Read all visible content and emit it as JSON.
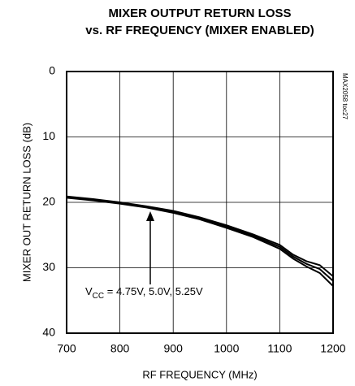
{
  "chart_data": {
    "type": "line",
    "title": [
      "MIXER OUTPUT RETURN LOSS",
      "vs. RF  FREQUENCY (MIXER ENABLED)"
    ],
    "x_label": "RF FREQUENCY (MHz)",
    "y_label": "MIXER OUT RETURN LOSS (dB)",
    "side_label": "MAX2058 toc27",
    "annotation": {
      "base": "V",
      "subscript": "CC",
      "rest": " = 4.75V, 5.0V, 5.25V"
    },
    "x": [
      700,
      750,
      800,
      850,
      900,
      950,
      1000,
      1050,
      1100,
      1125,
      1150,
      1175,
      1200
    ],
    "series": [
      {
        "color": "#000000",
        "values": [
          19.1,
          19.5,
          20.0,
          20.6,
          21.3,
          22.3,
          23.5,
          24.9,
          26.5,
          28.0,
          29.0,
          29.6,
          31.3
        ]
      },
      {
        "color": "#000000",
        "values": [
          19.2,
          19.6,
          20.1,
          20.7,
          21.5,
          22.5,
          23.7,
          25.1,
          26.8,
          28.3,
          29.4,
          30.2,
          32.0
        ]
      },
      {
        "color": "#000000",
        "values": [
          19.3,
          19.7,
          20.2,
          20.8,
          21.6,
          22.6,
          23.9,
          25.3,
          27.1,
          28.6,
          29.8,
          30.8,
          32.8
        ]
      }
    ],
    "xlim": [
      700,
      1200
    ],
    "xticks": [
      700,
      800,
      900,
      1000,
      1100,
      1200
    ],
    "ylim": [
      0,
      40
    ],
    "yticks": [
      0,
      10,
      20,
      30,
      40
    ],
    "y_inverted": true,
    "grid": true
  }
}
